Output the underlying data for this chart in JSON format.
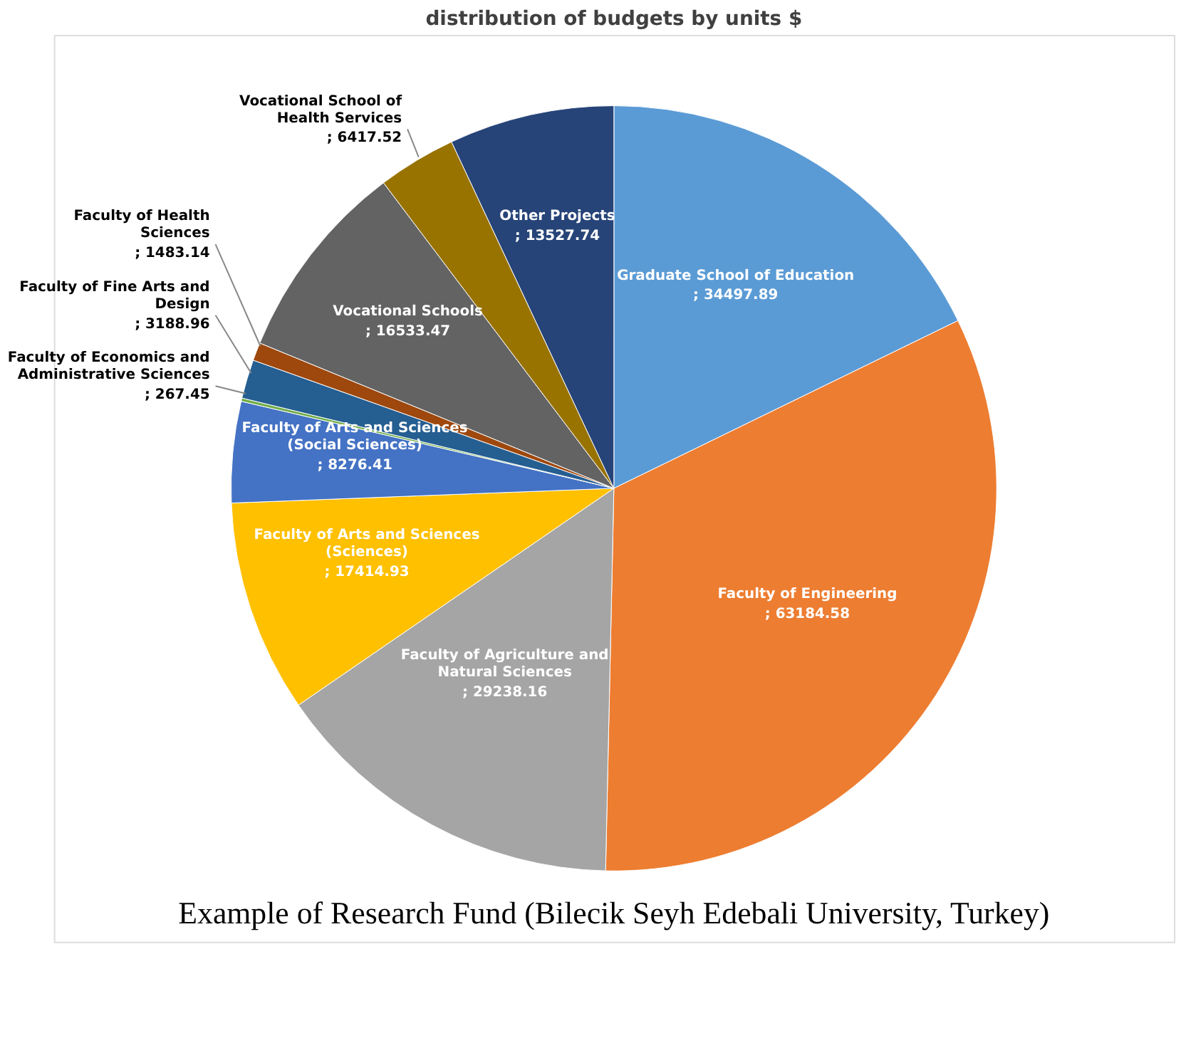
{
  "chart_data": {
    "type": "pie",
    "title": "distribution of budgets by units $",
    "categories": [
      "Graduate School of Education",
      "Faculty of Engineering ",
      "Faculty of Agriculture and Natural Sciences",
      "Faculty of Arts and Sciences (Sciences)",
      "Faculty of Arts and Sciences (Social Sciences)",
      "Faculty of Economics and Administrative Sciences",
      "Faculty of Fine Arts and Design",
      "Faculty of Health Sciences",
      "Vocational Schools",
      "Vocational School of Health Services",
      "Other Projects"
    ],
    "values": [
      34497.89,
      63184.58,
      29238.16,
      17414.93,
      8276.41,
      267.45,
      3188.96,
      1483.14,
      16533.47,
      6417.52,
      13527.74
    ],
    "colors": [
      "#5b9bd5",
      "#ed7d31",
      "#a5a5a5",
      "#ffc000",
      "#4472c4",
      "#70ad47",
      "#255e91",
      "#9e480e",
      "#636363",
      "#997300",
      "#264478"
    ],
    "value_labels": [
      "; 34497.89",
      "; 63184.58",
      "; 29238.16",
      "; 17414.93",
      "; 8276.41",
      "; 267.45",
      "; 3188.96",
      "; 1483.14",
      "; 16533.47",
      "; 6417.52",
      "; 13527.74"
    ],
    "legend": false,
    "annotations": [
      "Example of Research Fund (Bilecik Seyh Edebali University, Turkey)"
    ]
  }
}
